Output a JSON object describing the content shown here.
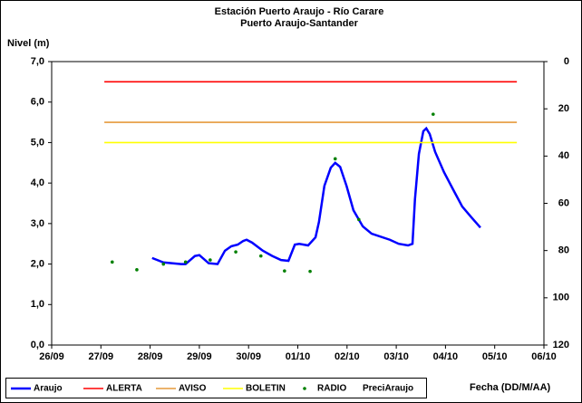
{
  "chart_data": {
    "type": "line",
    "title": "Estación Puerto Araujo - Río Carare",
    "subtitle": "Puerto Araujo-Santander",
    "y_label": "Nivel (m)",
    "x_label": "Fecha (DD/M/AA)",
    "xlim": [
      0,
      10
    ],
    "xticks": [
      {
        "value": 0,
        "label": "26/09"
      },
      {
        "value": 1,
        "label": "27/09"
      },
      {
        "value": 2,
        "label": "28/09"
      },
      {
        "value": 3,
        "label": "29/09"
      },
      {
        "value": 4,
        "label": "30/09"
      },
      {
        "value": 5,
        "label": "01/10"
      },
      {
        "value": 6,
        "label": "02/10"
      },
      {
        "value": 7,
        "label": "03/10"
      },
      {
        "value": 8,
        "label": "04/10"
      },
      {
        "value": 9,
        "label": "05/10"
      },
      {
        "value": 10,
        "label": "06/10"
      }
    ],
    "ylim": [
      0,
      7
    ],
    "yticks": [
      {
        "value": 0,
        "label": "0,0"
      },
      {
        "value": 1,
        "label": "1,0"
      },
      {
        "value": 2,
        "label": "2,0"
      },
      {
        "value": 3,
        "label": "3,0"
      },
      {
        "value": 4,
        "label": "4,0"
      },
      {
        "value": 5,
        "label": "5,0"
      },
      {
        "value": 6,
        "label": "6,0"
      },
      {
        "value": 7,
        "label": "7,0"
      }
    ],
    "y2lim": [
      120,
      0
    ],
    "y2ticks": [
      0,
      20,
      40,
      60,
      80,
      100,
      120
    ],
    "series": [
      {
        "name": "Araujo",
        "color": "#0000ff",
        "kind": "line",
        "x": [
          2.04,
          2.27,
          2.63,
          2.72,
          2.91,
          3.0,
          3.19,
          3.37,
          3.52,
          3.65,
          3.78,
          3.89,
          3.96,
          4.07,
          4.29,
          4.48,
          4.66,
          4.81,
          4.94,
          5.03,
          5.21,
          5.36,
          5.43,
          5.54,
          5.67,
          5.76,
          5.86,
          5.99,
          6.13,
          6.32,
          6.5,
          6.87,
          7.05,
          7.24,
          7.33,
          7.38,
          7.46,
          7.55,
          7.61,
          7.68,
          7.79,
          7.97,
          8.16,
          8.34,
          8.53,
          8.71
        ],
        "values": [
          2.15,
          2.04,
          2.0,
          2.0,
          2.2,
          2.22,
          2.02,
          2.0,
          2.33,
          2.44,
          2.48,
          2.57,
          2.6,
          2.53,
          2.33,
          2.2,
          2.1,
          2.08,
          2.48,
          2.5,
          2.46,
          2.66,
          3.04,
          3.93,
          4.38,
          4.5,
          4.4,
          3.93,
          3.33,
          2.93,
          2.75,
          2.6,
          2.5,
          2.46,
          2.5,
          3.6,
          4.72,
          5.28,
          5.35,
          5.21,
          4.77,
          4.27,
          3.83,
          3.42,
          3.15,
          2.9
        ]
      },
      {
        "name": "ALERTA",
        "color": "#ff0000",
        "kind": "line",
        "x": [
          1.07,
          9.45
        ],
        "values": [
          6.5,
          6.5
        ]
      },
      {
        "name": "AVISO",
        "color": "#e69a3c",
        "kind": "line",
        "x": [
          1.07,
          9.45
        ],
        "values": [
          5.5,
          5.5
        ]
      },
      {
        "name": "BOLETIN",
        "color": "#ffff00",
        "kind": "line",
        "x": [
          1.07,
          9.45
        ],
        "values": [
          5.0,
          5.0
        ]
      },
      {
        "name": "RADIO",
        "color": "#008000",
        "kind": "dots",
        "x": [
          1.23,
          1.73,
          2.27,
          2.72,
          3.22,
          3.74,
          4.25,
          4.73,
          5.25,
          5.76,
          6.24,
          7.75
        ],
        "values": [
          2.05,
          1.86,
          2.0,
          2.05,
          2.1,
          2.3,
          2.2,
          1.83,
          1.82,
          4.6,
          3.1,
          5.7
        ]
      },
      {
        "name": "PreciAraujo",
        "color": "#808080",
        "kind": "bar",
        "axis": "y2",
        "x": [],
        "values": []
      }
    ]
  }
}
